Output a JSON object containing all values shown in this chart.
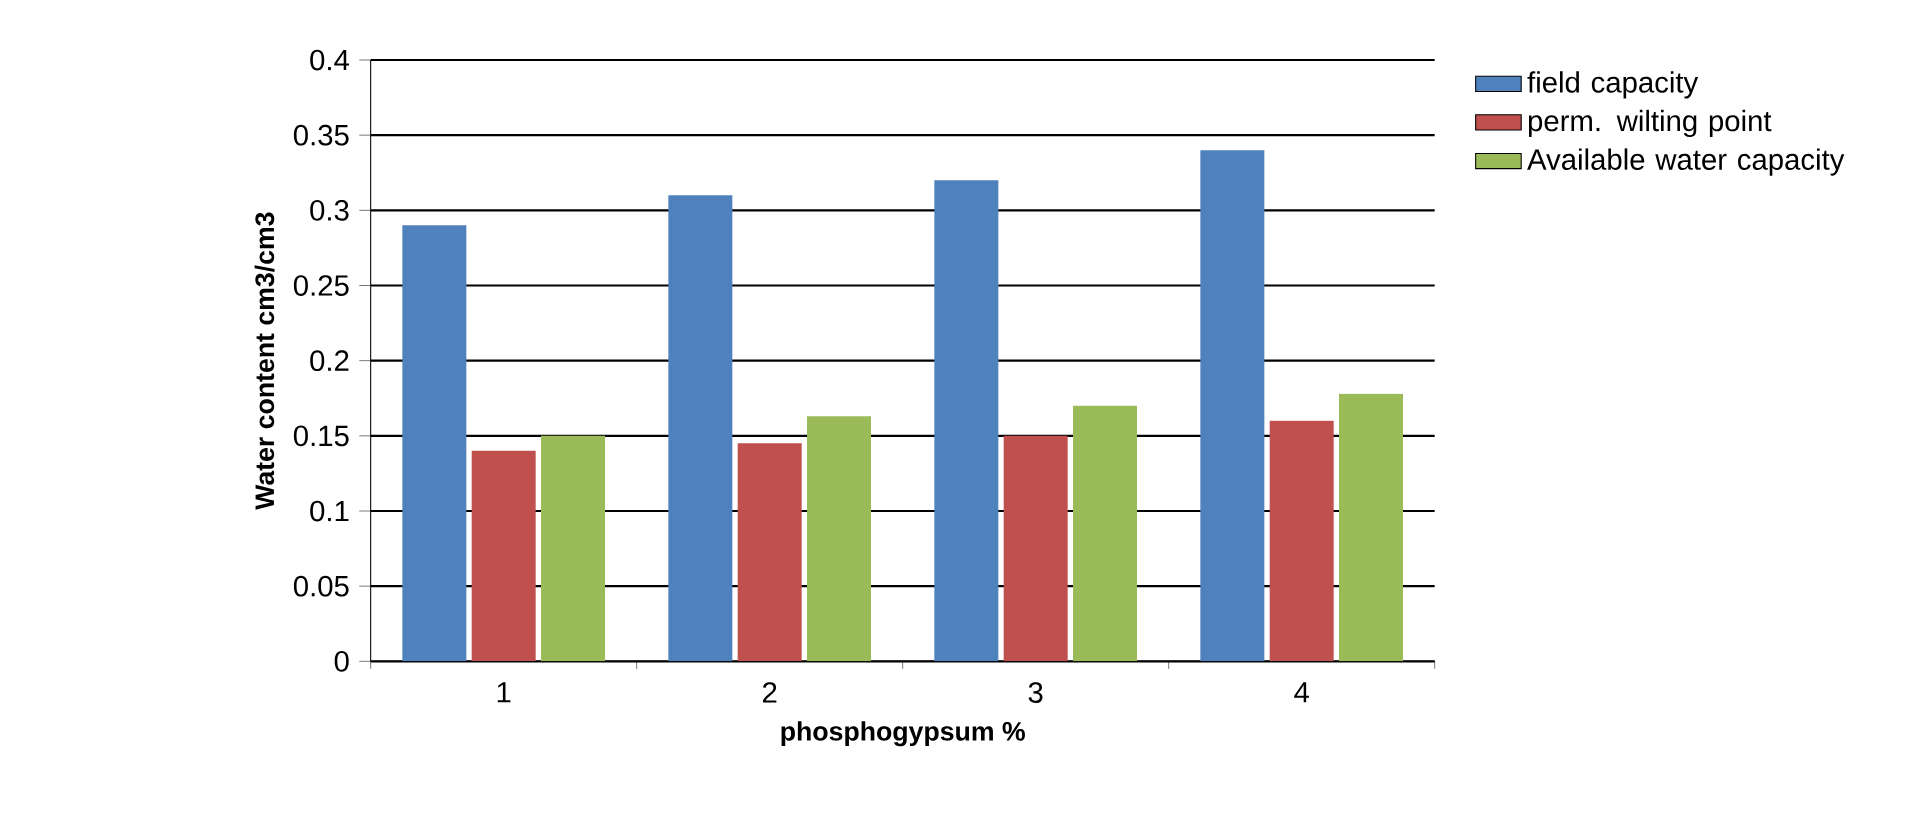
{
  "chart_data": {
    "type": "bar",
    "xlabel": "phosphogypsum %",
    "ylabel": "Water content cm3/cm3",
    "categories": [
      "1",
      "2",
      "3",
      "4"
    ],
    "series": [
      {
        "name": "field capacity",
        "color": "#4f81bd",
        "values": [
          0.29,
          0.31,
          0.32,
          0.34
        ]
      },
      {
        "name": "perm. wilting point",
        "color": "#c0504d",
        "values": [
          0.14,
          0.145,
          0.15,
          0.16
        ]
      },
      {
        "name": "Available water capacity",
        "color": "#9bbb59",
        "values": [
          0.15,
          0.163,
          0.17,
          0.178
        ]
      }
    ],
    "ylim": [
      0,
      0.4
    ],
    "yticks": [
      0,
      0.05,
      0.1,
      0.15,
      0.2,
      0.25,
      0.3,
      0.35,
      0.4
    ],
    "grid": "y",
    "legend": "top right"
  }
}
